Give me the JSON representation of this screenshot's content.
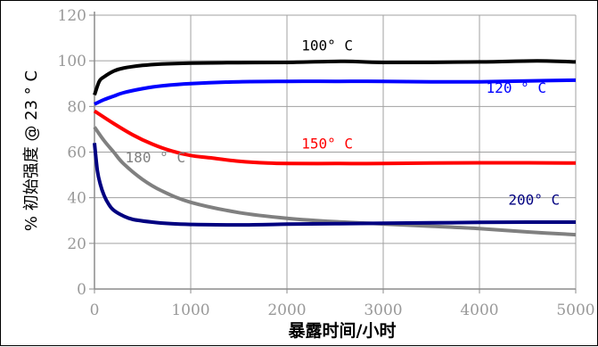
{
  "chart_data": {
    "type": "line",
    "title": "",
    "xlabel": "暴露时间/小时",
    "ylabel": "% 初始强度 @ 23 ° C",
    "xlim": [
      0,
      5000
    ],
    "ylim": [
      0,
      120
    ],
    "xticks": [
      0,
      1000,
      2000,
      3000,
      4000,
      5000
    ],
    "yticks": [
      0,
      20,
      40,
      60,
      80,
      100,
      120
    ],
    "grid": true,
    "legend": "none",
    "series": [
      {
        "name": "100° C",
        "color": "#000000",
        "x": [
          0,
          50,
          100,
          200,
          300,
          500,
          700,
          1000,
          1500,
          2000,
          2600,
          3000,
          4000,
          4600,
          5000
        ],
        "y": [
          85,
          91,
          93,
          95.5,
          96.8,
          98,
          98.6,
          99,
          99.2,
          99.3,
          99.8,
          99.3,
          99.5,
          100,
          99.5
        ]
      },
      {
        "name": "120 ° C",
        "color": "#0000ff",
        "x": [
          0,
          100,
          200,
          300,
          500,
          700,
          1000,
          1500,
          2000,
          2500,
          3000,
          3500,
          4000,
          4500,
          5000
        ],
        "y": [
          81,
          83,
          84.5,
          86,
          87.8,
          89,
          90,
          90.8,
          91,
          91,
          91,
          90.8,
          90.8,
          91.2,
          91.5
        ]
      },
      {
        "name": "150° C",
        "color": "#ff0000",
        "x": [
          0,
          200,
          400,
          600,
          800,
          1000,
          1200,
          1500,
          1800,
          2000,
          2500,
          3000,
          3500,
          4000,
          4500,
          5000
        ],
        "y": [
          78,
          72.5,
          67.5,
          63.5,
          60.5,
          58.5,
          57.5,
          56,
          55.2,
          55,
          55,
          55,
          55.2,
          55.3,
          55.3,
          55.2
        ]
      },
      {
        "name": "180 ° C",
        "color": "#808080",
        "x": [
          0,
          100,
          200,
          300,
          500,
          700,
          1000,
          1500,
          2000,
          2500,
          3000,
          3500,
          4000,
          4500,
          5000
        ],
        "y": [
          71,
          65,
          60,
          55,
          48,
          43,
          38,
          33.5,
          31,
          29.5,
          28.5,
          27.5,
          26.5,
          25,
          23.8
        ]
      },
      {
        "name": "200° C",
        "color": "#000080",
        "x": [
          0,
          30,
          60,
          100,
          150,
          200,
          300,
          400,
          600,
          800,
          1000,
          1500,
          2000,
          2500,
          3000,
          3500,
          4000,
          4500,
          5000
        ],
        "y": [
          64,
          52,
          46,
          41,
          37,
          34.5,
          32,
          30.5,
          29.3,
          28.6,
          28.3,
          28.1,
          28.4,
          28.6,
          28.8,
          29,
          29.2,
          29.3,
          29.3
        ]
      }
    ],
    "annotations": [
      {
        "text": "100° C",
        "x": 2150,
        "y": 104.5,
        "color": "#000000"
      },
      {
        "text": "120 ° C",
        "x": 4070,
        "y": 86,
        "color": "#0000ff"
      },
      {
        "text": "150° C",
        "x": 2150,
        "y": 61.5,
        "color": "#ff0000"
      },
      {
        "text": "180 ° C",
        "x": 320,
        "y": 55.5,
        "color": "#808080"
      },
      {
        "text": "200° C",
        "x": 4300,
        "y": 37,
        "color": "#000080"
      }
    ]
  }
}
